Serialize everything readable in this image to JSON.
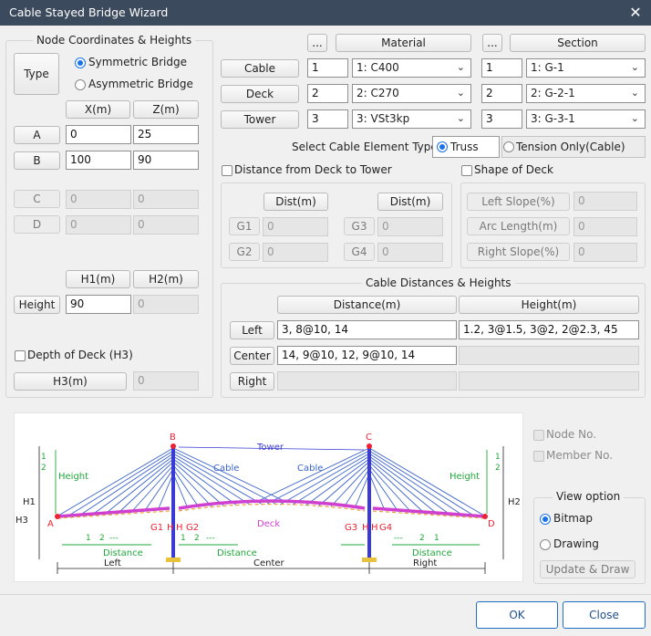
{
  "window": {
    "title": "Cable Stayed Bridge Wizard"
  },
  "node": {
    "group_title": "Node Coordinates & Heights",
    "type_label": "Type",
    "symmetric": "Symmetric Bridge",
    "asymmetric": "Asymmetric Bridge",
    "x_header": "X(m)",
    "z_header": "Z(m)",
    "rows": [
      {
        "label": "A",
        "x": "0",
        "z": "25"
      },
      {
        "label": "B",
        "x": "100",
        "z": "90"
      },
      {
        "label": "C",
        "x": "0",
        "z": "0"
      },
      {
        "label": "D",
        "x": "0",
        "z": "0"
      }
    ],
    "h1_header": "H1(m)",
    "h2_header": "H2(m)",
    "height_label": "Height",
    "h1": "90",
    "h2": "0",
    "depth_label": "Depth of Deck (H3)",
    "h3_label": "H3(m)",
    "h3": "0"
  },
  "props": {
    "ellipsis": "...",
    "material_header": "Material",
    "section_header": "Section",
    "rows": [
      {
        "label": "Cable",
        "mat_no": "1",
        "mat": "1: C400",
        "sec_no": "1",
        "sec": "1: G-1"
      },
      {
        "label": "Deck",
        "mat_no": "2",
        "mat": "2: C270",
        "sec_no": "2",
        "sec": "2: G-2-1"
      },
      {
        "label": "Tower",
        "mat_no": "3",
        "mat": "3: VSt3kp",
        "sec_no": "3",
        "sec": "3: G-3-1"
      }
    ],
    "arrow": "⌄"
  },
  "cable_type": {
    "label": "Select Cable Element Type",
    "truss": "Truss",
    "tension": "Tension Only(Cable)"
  },
  "dist_deck": {
    "label": "Distance from Deck to Tower",
    "dist1": "Dist(m)",
    "dist2": "Dist(m)",
    "g1": "G1",
    "g1v": "0",
    "g2": "G2",
    "g2v": "0",
    "g3": "G3",
    "g3v": "0",
    "g4": "G4",
    "g4v": "0"
  },
  "shape": {
    "label": "Shape of Deck",
    "left": "Left Slope(%)",
    "left_v": "0",
    "arc": "Arc Length(m)",
    "arc_v": "0",
    "right": "Right Slope(%)",
    "right_v": "0"
  },
  "cable_dist": {
    "group_title": "Cable Distances & Heights",
    "distance_header": "Distance(m)",
    "height_header": "Height(m)",
    "left_label": "Left",
    "left_dist": "3, 8@10, 14",
    "left_height": "1.2, 3@1.5, 3@2, 2@2.3, 45",
    "center_label": "Center",
    "center_dist": "14, 9@10, 12, 9@10, 14",
    "right_label": "Right"
  },
  "diagram": {
    "B": "B",
    "C": "C",
    "A": "A",
    "D": "D",
    "tower": "Tower",
    "cable": "Cable",
    "deck": "Deck",
    "height": "Height",
    "H1": "H1",
    "H2": "H2",
    "H3": "H3",
    "G1": "G1",
    "G2": "G2",
    "G3": "G3",
    "G4": "G4",
    "H": "H",
    "distance": "Distance",
    "left": "Left",
    "center": "Center",
    "right": "Right",
    "n1": "1",
    "n2": "2",
    "dots": "---"
  },
  "options": {
    "node_no": "Node No.",
    "member_no": "Member No.",
    "view_option": "View option",
    "bitmap": "Bitmap",
    "drawing": "Drawing",
    "update": "Update & Draw"
  },
  "footer": {
    "ok": "OK",
    "close": "Close"
  }
}
